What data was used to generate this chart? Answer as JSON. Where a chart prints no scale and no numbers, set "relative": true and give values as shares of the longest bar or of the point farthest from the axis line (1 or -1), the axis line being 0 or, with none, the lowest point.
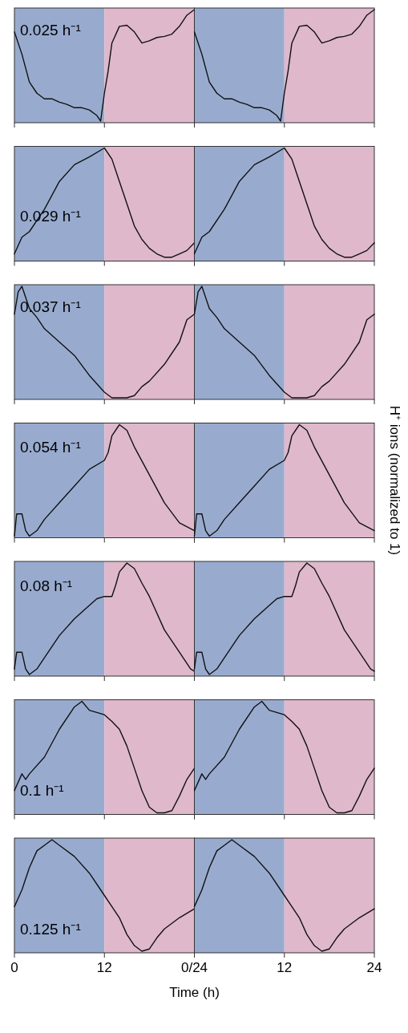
{
  "chart_data": [
    {
      "type": "line",
      "relative": true,
      "color": "#111111",
      "annotations": [
        "0.025 h⁻¹"
      ],
      "xlim": [
        0,
        24
      ],
      "xticks": [
        0,
        12,
        24
      ],
      "tick_labels": false,
      "bands": [
        {
          "axis": "x",
          "from": 0,
          "to": 12,
          "color": "#98abcf"
        },
        {
          "axis": "x",
          "from": 12,
          "to": 24,
          "color": "#dfb8cc"
        }
      ],
      "x": [
        0,
        1,
        2,
        3,
        4,
        5,
        6,
        7,
        8,
        9,
        10,
        11,
        11.5,
        12,
        12.5,
        13,
        14,
        15,
        16,
        17,
        18,
        19,
        20,
        21,
        22,
        23,
        24
      ],
      "values": [
        0.8,
        0.6,
        0.35,
        0.25,
        0.2,
        0.2,
        0.17,
        0.15,
        0.12,
        0.12,
        0.1,
        0.05,
        0,
        0.25,
        0.45,
        0.7,
        0.85,
        0.86,
        0.8,
        0.7,
        0.72,
        0.75,
        0.76,
        0.78,
        0.85,
        0.95,
        1
      ]
    },
    {
      "type": "line",
      "relative": true,
      "color": "#111111",
      "xlim": [
        0,
        24
      ],
      "xticks": [
        0,
        12,
        24
      ],
      "tick_labels": false,
      "bands": [
        {
          "axis": "x",
          "from": 0,
          "to": 12,
          "color": "#98abcf"
        },
        {
          "axis": "x",
          "from": 12,
          "to": 24,
          "color": "#dfb8cc"
        }
      ],
      "x": [
        0,
        1,
        2,
        3,
        4,
        5,
        6,
        7,
        8,
        9,
        10,
        11,
        11.5,
        12,
        12.5,
        13,
        14,
        15,
        16,
        17,
        18,
        19,
        20,
        21,
        22,
        23,
        24
      ],
      "values": [
        0.8,
        0.6,
        0.35,
        0.25,
        0.2,
        0.2,
        0.17,
        0.15,
        0.12,
        0.12,
        0.1,
        0.05,
        0,
        0.25,
        0.45,
        0.7,
        0.85,
        0.86,
        0.8,
        0.7,
        0.72,
        0.75,
        0.76,
        0.78,
        0.85,
        0.95,
        1
      ]
    },
    {
      "type": "line",
      "relative": true,
      "color": "#111111",
      "annotations": [
        "0.029 h⁻¹"
      ],
      "xlim": [
        0,
        24
      ],
      "xticks": [
        0,
        12,
        24
      ],
      "tick_labels": false,
      "bands": [
        {
          "axis": "x",
          "from": 0,
          "to": 12,
          "color": "#98abcf"
        },
        {
          "axis": "x",
          "from": 12,
          "to": 24,
          "color": "#dfb8cc"
        }
      ],
      "x": [
        0,
        1,
        2,
        4,
        6,
        8,
        10,
        12,
        13,
        14,
        15,
        16,
        17,
        18,
        19,
        20,
        21,
        22,
        23,
        24
      ],
      "values": [
        0.05,
        0.2,
        0.25,
        0.45,
        0.7,
        0.85,
        0.92,
        1,
        0.9,
        0.7,
        0.5,
        0.3,
        0.18,
        0.1,
        0.05,
        0.02,
        0.02,
        0.05,
        0.08,
        0.15
      ]
    },
    {
      "type": "line",
      "relative": true,
      "color": "#111111",
      "xlim": [
        0,
        24
      ],
      "xticks": [
        0,
        12,
        24
      ],
      "tick_labels": false,
      "bands": [
        {
          "axis": "x",
          "from": 0,
          "to": 12,
          "color": "#98abcf"
        },
        {
          "axis": "x",
          "from": 12,
          "to": 24,
          "color": "#dfb8cc"
        }
      ],
      "x": [
        0,
        1,
        2,
        4,
        6,
        8,
        10,
        12,
        13,
        14,
        15,
        16,
        17,
        18,
        19,
        20,
        21,
        22,
        23,
        24
      ],
      "values": [
        0.05,
        0.2,
        0.25,
        0.45,
        0.7,
        0.85,
        0.92,
        1,
        0.9,
        0.7,
        0.5,
        0.3,
        0.18,
        0.1,
        0.05,
        0.02,
        0.02,
        0.05,
        0.08,
        0.15
      ]
    },
    {
      "type": "line",
      "relative": true,
      "color": "#111111",
      "annotations": [
        "0.037 h⁻¹"
      ],
      "xlim": [
        0,
        24
      ],
      "xticks": [
        0,
        12,
        24
      ],
      "tick_labels": false,
      "bands": [
        {
          "axis": "x",
          "from": 0,
          "to": 12,
          "color": "#98abcf"
        },
        {
          "axis": "x",
          "from": 12,
          "to": 24,
          "color": "#dfb8cc"
        }
      ],
      "x": [
        0,
        0.5,
        1,
        2,
        3,
        4,
        6,
        8,
        10,
        12,
        13,
        15,
        16,
        17,
        18,
        20,
        22,
        23,
        24
      ],
      "values": [
        0.75,
        0.95,
        1,
        0.8,
        0.72,
        0.62,
        0.5,
        0.38,
        0.2,
        0.05,
        0,
        0,
        0.02,
        0.1,
        0.15,
        0.3,
        0.5,
        0.7,
        0.75
      ]
    },
    {
      "type": "line",
      "relative": true,
      "color": "#111111",
      "xlim": [
        0,
        24
      ],
      "xticks": [
        0,
        12,
        24
      ],
      "tick_labels": false,
      "bands": [
        {
          "axis": "x",
          "from": 0,
          "to": 12,
          "color": "#98abcf"
        },
        {
          "axis": "x",
          "from": 12,
          "to": 24,
          "color": "#dfb8cc"
        }
      ],
      "x": [
        0,
        0.5,
        1,
        2,
        3,
        4,
        6,
        8,
        10,
        12,
        13,
        15,
        16,
        17,
        18,
        20,
        22,
        23,
        24
      ],
      "values": [
        0.75,
        0.95,
        1,
        0.8,
        0.72,
        0.62,
        0.5,
        0.38,
        0.2,
        0.05,
        0,
        0,
        0.02,
        0.1,
        0.15,
        0.3,
        0.5,
        0.7,
        0.75
      ]
    },
    {
      "type": "line",
      "relative": true,
      "color": "#111111",
      "annotations": [
        "0.054 h⁻¹"
      ],
      "xlim": [
        0,
        24
      ],
      "xticks": [
        0,
        12,
        24
      ],
      "tick_labels": false,
      "bands": [
        {
          "axis": "x",
          "from": 0,
          "to": 12,
          "color": "#98abcf"
        },
        {
          "axis": "x",
          "from": 12,
          "to": 24,
          "color": "#dfb8cc"
        }
      ],
      "x": [
        0,
        0.3,
        1,
        1.5,
        2,
        3,
        4,
        6,
        8,
        10,
        12,
        12.5,
        13,
        14,
        15,
        16,
        18,
        20,
        22,
        24
      ],
      "values": [
        0,
        0.2,
        0.2,
        0.05,
        0,
        0.05,
        0.15,
        0.3,
        0.45,
        0.6,
        0.68,
        0.75,
        0.9,
        1,
        0.95,
        0.8,
        0.55,
        0.3,
        0.12,
        0.05
      ]
    },
    {
      "type": "line",
      "relative": true,
      "color": "#111111",
      "ylabel": "H⁺ ions (normalized to 1)",
      "xlim": [
        0,
        24
      ],
      "xticks": [
        0,
        12,
        24
      ],
      "tick_labels": false,
      "bands": [
        {
          "axis": "x",
          "from": 0,
          "to": 12,
          "color": "#98abcf"
        },
        {
          "axis": "x",
          "from": 12,
          "to": 24,
          "color": "#dfb8cc"
        }
      ],
      "x": [
        0,
        0.3,
        1,
        1.5,
        2,
        3,
        4,
        6,
        8,
        10,
        12,
        12.5,
        13,
        14,
        15,
        16,
        18,
        20,
        22,
        24
      ],
      "values": [
        0,
        0.2,
        0.2,
        0.05,
        0,
        0.05,
        0.15,
        0.3,
        0.45,
        0.6,
        0.68,
        0.75,
        0.9,
        1,
        0.95,
        0.8,
        0.55,
        0.3,
        0.12,
        0.05
      ]
    },
    {
      "type": "line",
      "relative": true,
      "color": "#111111",
      "annotations": [
        "0.08 h⁻¹"
      ],
      "xlim": [
        0,
        24
      ],
      "xticks": [
        0,
        12,
        24
      ],
      "tick_labels": false,
      "bands": [
        {
          "axis": "x",
          "from": 0,
          "to": 12,
          "color": "#98abcf"
        },
        {
          "axis": "x",
          "from": 12,
          "to": 24,
          "color": "#dfb8cc"
        }
      ],
      "x": [
        0,
        0.3,
        1,
        1.5,
        2,
        3,
        4,
        6,
        8,
        10,
        11,
        12,
        13,
        13.5,
        14,
        15,
        16,
        17,
        18,
        20,
        22,
        23.5,
        24
      ],
      "values": [
        0.05,
        0.2,
        0.2,
        0.05,
        0,
        0.05,
        0.15,
        0.35,
        0.5,
        0.62,
        0.68,
        0.7,
        0.7,
        0.8,
        0.92,
        1,
        0.95,
        0.82,
        0.7,
        0.4,
        0.2,
        0.05,
        0.03
      ]
    },
    {
      "type": "line",
      "relative": true,
      "color": "#111111",
      "xlim": [
        0,
        24
      ],
      "xticks": [
        0,
        12,
        24
      ],
      "tick_labels": false,
      "bands": [
        {
          "axis": "x",
          "from": 0,
          "to": 12,
          "color": "#98abcf"
        },
        {
          "axis": "x",
          "from": 12,
          "to": 24,
          "color": "#dfb8cc"
        }
      ],
      "x": [
        0,
        0.3,
        1,
        1.5,
        2,
        3,
        4,
        6,
        8,
        10,
        11,
        12,
        13,
        13.5,
        14,
        15,
        16,
        17,
        18,
        20,
        22,
        23.5,
        24
      ],
      "values": [
        0.05,
        0.2,
        0.2,
        0.05,
        0,
        0.05,
        0.15,
        0.35,
        0.5,
        0.62,
        0.68,
        0.7,
        0.7,
        0.8,
        0.92,
        1,
        0.95,
        0.82,
        0.7,
        0.4,
        0.2,
        0.05,
        0.03
      ]
    },
    {
      "type": "line",
      "relative": true,
      "color": "#111111",
      "annotations": [
        "0.1 h⁻¹"
      ],
      "xlim": [
        0,
        24
      ],
      "xticks": [
        0,
        12,
        24
      ],
      "tick_labels": false,
      "bands": [
        {
          "axis": "x",
          "from": 0,
          "to": 12,
          "color": "#98abcf"
        },
        {
          "axis": "x",
          "from": 12,
          "to": 24,
          "color": "#dfb8cc"
        }
      ],
      "x": [
        0,
        1,
        1.5,
        2,
        4,
        6,
        8,
        9,
        10,
        12,
        13,
        14,
        15,
        16,
        17,
        18,
        19,
        20,
        21,
        22,
        23,
        24
      ],
      "values": [
        0.2,
        0.35,
        0.3,
        0.35,
        0.5,
        0.75,
        0.95,
        1,
        0.92,
        0.88,
        0.82,
        0.75,
        0.6,
        0.4,
        0.2,
        0.05,
        0,
        0,
        0.02,
        0.15,
        0.3,
        0.4
      ]
    },
    {
      "type": "line",
      "relative": true,
      "color": "#111111",
      "xlim": [
        0,
        24
      ],
      "xticks": [
        0,
        12,
        24
      ],
      "tick_labels": false,
      "bands": [
        {
          "axis": "x",
          "from": 0,
          "to": 12,
          "color": "#98abcf"
        },
        {
          "axis": "x",
          "from": 12,
          "to": 24,
          "color": "#dfb8cc"
        }
      ],
      "x": [
        0,
        1,
        1.5,
        2,
        4,
        6,
        8,
        9,
        10,
        12,
        13,
        14,
        15,
        16,
        17,
        18,
        19,
        20,
        21,
        22,
        23,
        24
      ],
      "values": [
        0.2,
        0.35,
        0.3,
        0.35,
        0.5,
        0.75,
        0.95,
        1,
        0.92,
        0.88,
        0.82,
        0.75,
        0.6,
        0.4,
        0.2,
        0.05,
        0,
        0,
        0.02,
        0.15,
        0.3,
        0.4
      ]
    },
    {
      "type": "line",
      "relative": true,
      "color": "#111111",
      "annotations": [
        "0.125 h⁻¹"
      ],
      "xlabel": "Time (h)",
      "xlim": [
        0,
        24
      ],
      "xticks": [
        0,
        12,
        {
          "value": 24,
          "label": "0/24"
        }
      ],
      "bands": [
        {
          "axis": "x",
          "from": 0,
          "to": 12,
          "color": "#98abcf"
        },
        {
          "axis": "x",
          "from": 12,
          "to": 24,
          "color": "#dfb8cc"
        }
      ],
      "x": [
        0,
        1,
        2,
        3,
        4,
        5,
        6,
        8,
        10,
        12,
        13,
        14,
        15,
        16,
        17,
        18,
        19,
        20,
        21,
        22,
        24
      ],
      "values": [
        0.4,
        0.55,
        0.75,
        0.9,
        0.95,
        1,
        0.95,
        0.85,
        0.7,
        0.5,
        0.4,
        0.3,
        0.15,
        0.05,
        0,
        0.02,
        0.12,
        0.2,
        0.25,
        0.3,
        0.38
      ]
    },
    {
      "type": "line",
      "relative": true,
      "color": "#111111",
      "xlim": [
        0,
        24
      ],
      "xticks": [
        {
          "value": 0,
          "label": null
        },
        12,
        24
      ],
      "bands": [
        {
          "axis": "x",
          "from": 0,
          "to": 12,
          "color": "#98abcf"
        },
        {
          "axis": "x",
          "from": 12,
          "to": 24,
          "color": "#dfb8cc"
        }
      ],
      "x": [
        0,
        1,
        2,
        3,
        4,
        5,
        6,
        8,
        10,
        12,
        13,
        14,
        15,
        16,
        17,
        18,
        19,
        20,
        21,
        22,
        24
      ],
      "values": [
        0.4,
        0.55,
        0.75,
        0.9,
        0.95,
        1,
        0.95,
        0.85,
        0.7,
        0.5,
        0.4,
        0.3,
        0.15,
        0.05,
        0,
        0.02,
        0.12,
        0.2,
        0.25,
        0.3,
        0.38
      ]
    }
  ]
}
